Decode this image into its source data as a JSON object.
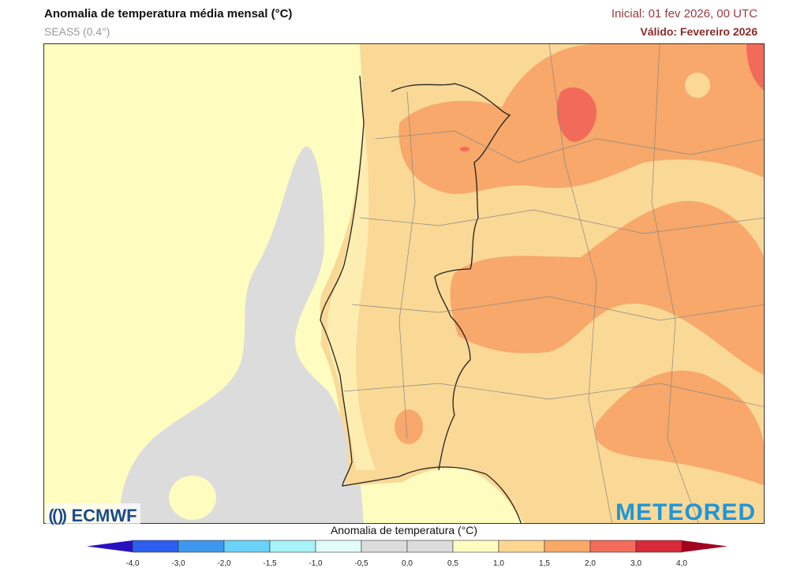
{
  "header": {
    "title": "Anomalia de temperatura média mensal (°C)",
    "subtitle": "SEAS5 (0.4°)",
    "initial": "Inicial: 01 fev 2026, 00 UTC",
    "valid": "Válido: Fevereiro 2026"
  },
  "logos": {
    "left": "ECMWF",
    "right": "METEORED"
  },
  "colorbar": {
    "title": "Anomalia de temperatura (°C)",
    "ticks": [
      "-4,0",
      "-3,0",
      "-2,0",
      "-1,5",
      "-1,0",
      "-0,5",
      "0,0",
      "0,5",
      "1,0",
      "1,5",
      "2,0",
      "3,0",
      "4,0"
    ],
    "colors": [
      "#2d5ef0",
      "#3f98f0",
      "#6ad2f8",
      "#a8f2fa",
      "#e2fcfc",
      "#dcdcdc",
      "#dcdcdc",
      "#fffcc0",
      "#fdd792",
      "#f9a866",
      "#f46c5a",
      "#d82a38"
    ],
    "under_color": "#2a10c0",
    "over_color": "#a0001e"
  },
  "map_colors": {
    "sea": "#fffcc0",
    "neutral": "#dcdcdc",
    "land": "#fad896",
    "warm": "#f7a86a",
    "hot": "#f26a5a"
  }
}
